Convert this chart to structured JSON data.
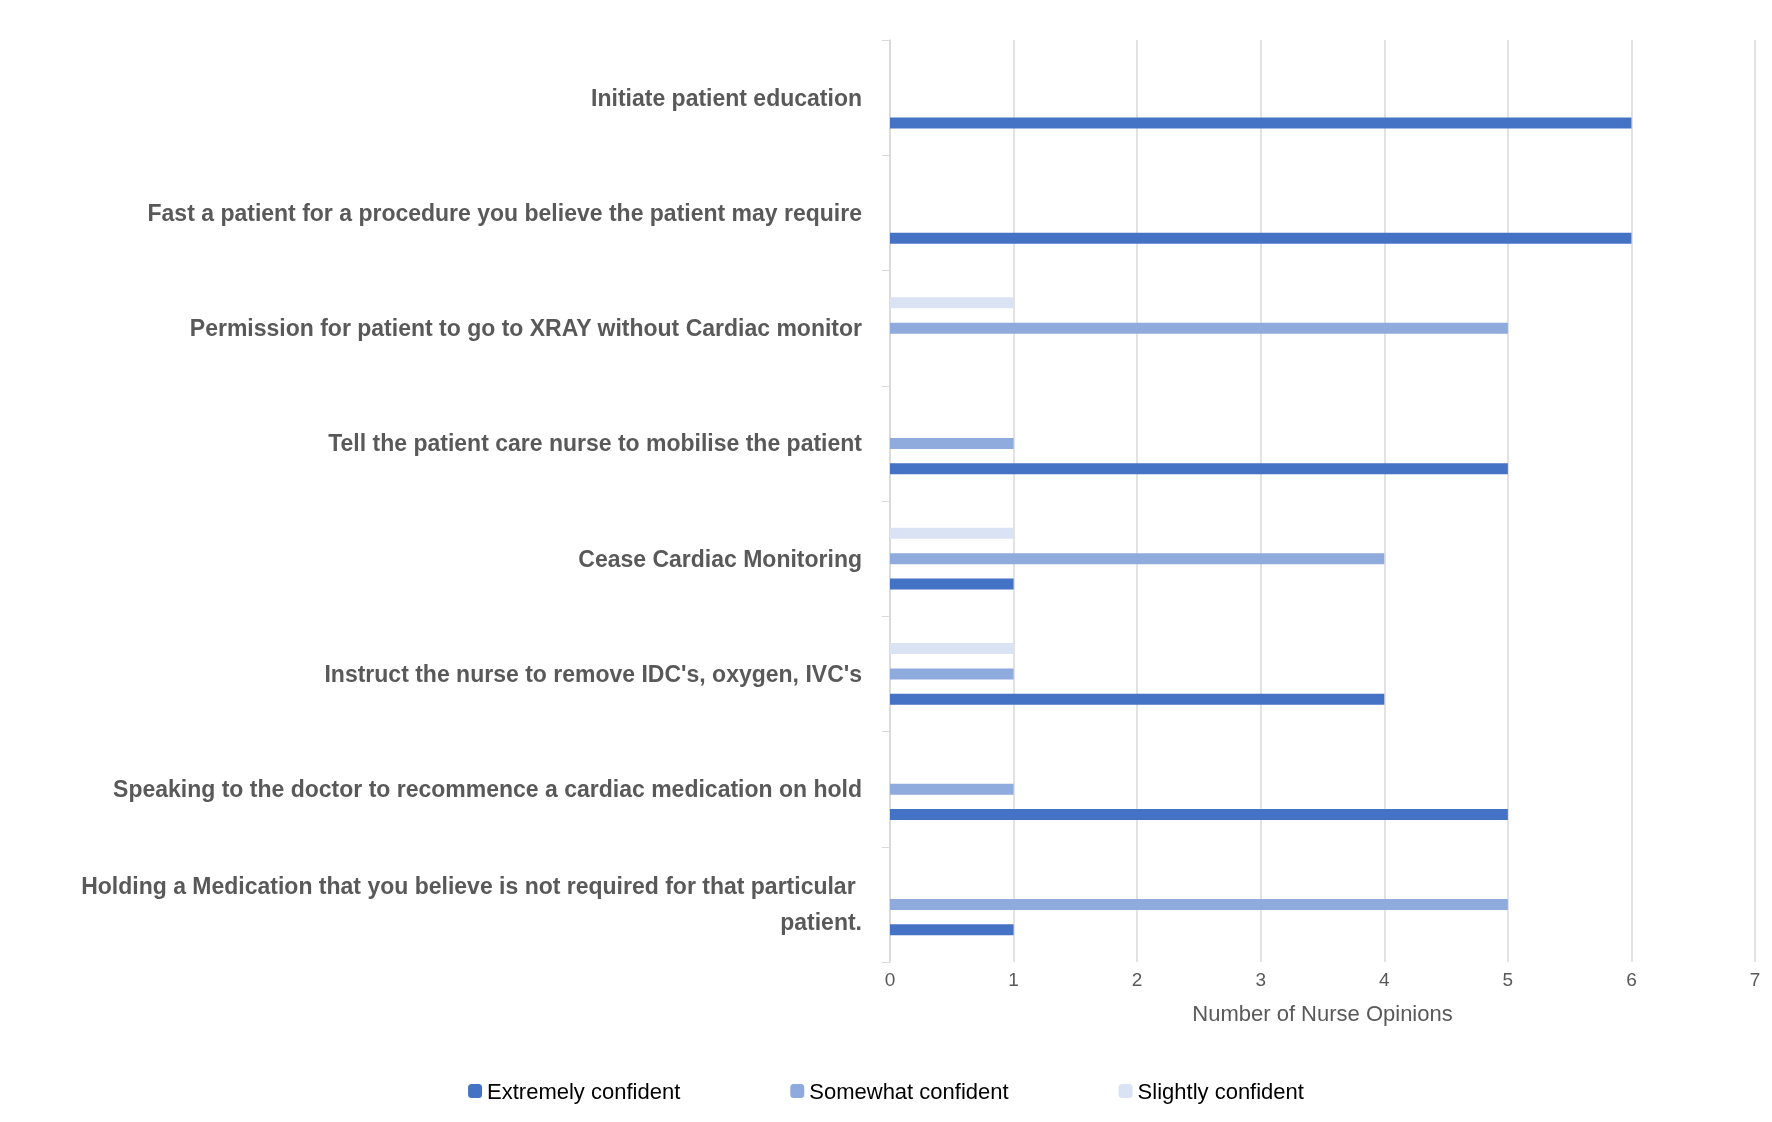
{
  "chart_data": {
    "type": "bar",
    "orientation": "horizontal",
    "xlabel": "Number of Nurse Opinions",
    "categories": [
      "Initiate patient education",
      "Fast a patient for a procedure you believe the patient may require",
      "Permission for patient to go to XRAY without Cardiac monitor",
      "Tell the patient care nurse to mobilise the patient",
      "Cease Cardiac Monitoring",
      "Instruct the nurse to remove IDC's, oxygen, IVC's",
      "Speaking to the doctor to recommence a cardiac medication on hold",
      "Holding a Medication that you believe is not required for that particular patient."
    ],
    "series": [
      {
        "name": "Extremely confident",
        "color": "#4472c4",
        "values": [
          6,
          6,
          null,
          5,
          1,
          4,
          5,
          1
        ]
      },
      {
        "name": "Somewhat confident",
        "color": "#8faadc",
        "values": [
          null,
          null,
          5,
          1,
          4,
          1,
          1,
          5
        ]
      },
      {
        "name": "Slightly confident",
        "color": "#dae3f3",
        "values": [
          null,
          null,
          1,
          null,
          1,
          1,
          null,
          null
        ]
      }
    ],
    "xlim": [
      0,
      7
    ],
    "xticks": [
      0,
      1,
      2,
      3,
      4,
      5,
      6,
      7
    ],
    "grid": "x",
    "legend": "bottom"
  }
}
